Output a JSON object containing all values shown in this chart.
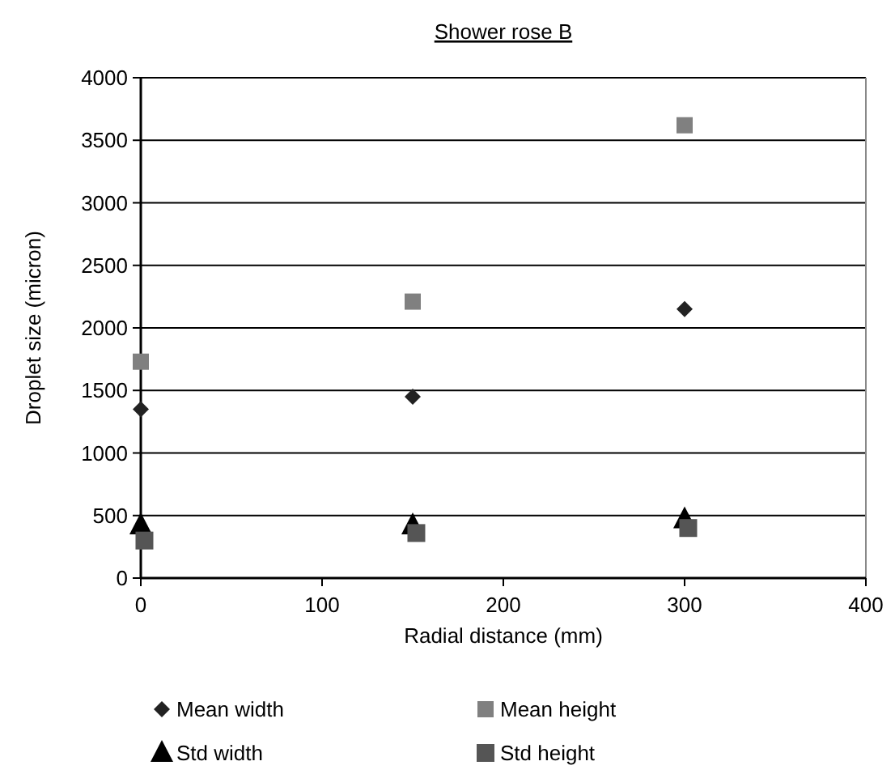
{
  "chart_data": {
    "type": "scatter",
    "title": "Shower rose B",
    "xlabel": "Radial distance (mm)",
    "ylabel": "Droplet size (micron)",
    "xlim": [
      0,
      400
    ],
    "xticks": [
      0,
      100,
      200,
      300,
      400
    ],
    "ylim": [
      0,
      4000
    ],
    "yticks": [
      0,
      500,
      1000,
      1500,
      2000,
      2500,
      3000,
      3500,
      4000
    ],
    "grid": "y",
    "legend": "bottom",
    "series": [
      {
        "name": "Mean width",
        "color": "#222222",
        "marker": "diamond",
        "x": [
          0,
          150,
          300
        ],
        "values": [
          1350,
          1450,
          2150
        ]
      },
      {
        "name": "Mean height",
        "color": "#808080",
        "marker": "square",
        "x": [
          0,
          150,
          300
        ],
        "values": [
          1730,
          2210,
          3620
        ]
      },
      {
        "name": "Std width",
        "color": "#000000",
        "marker": "triangle",
        "x": [
          0,
          150,
          300
        ],
        "values": [
          420,
          420,
          470
        ]
      },
      {
        "name": "Std height",
        "color": "#555555",
        "marker": "square",
        "x": [
          2,
          152,
          302
        ],
        "values": [
          300,
          360,
          400
        ]
      }
    ]
  }
}
